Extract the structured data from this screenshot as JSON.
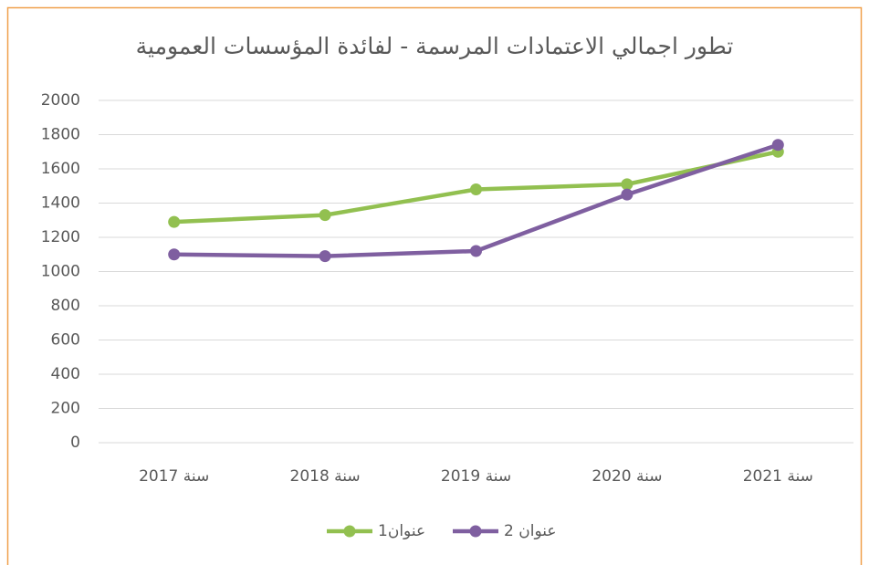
{
  "chart_data": {
    "type": "line",
    "title": "تطور اجمالي الاعتمادات المرسمة - لفائدة المؤسسات العمومية",
    "categories": [
      "سنة 2017",
      "سنة 2018",
      "سنة 2019",
      "سنة 2020",
      "سنة 2021"
    ],
    "series": [
      {
        "name": "عنوان1",
        "color": "#92c050",
        "values": [
          1290,
          1330,
          1480,
          1510,
          1700
        ]
      },
      {
        "name": "عنوان 2",
        "color": "#7f5fa0",
        "values": [
          1100,
          1090,
          1120,
          1450,
          1740
        ]
      }
    ],
    "ylim": [
      0,
      2000
    ],
    "yticks": [
      0,
      200,
      400,
      600,
      800,
      1000,
      1200,
      1400,
      1600,
      1800,
      2000
    ],
    "grid": true,
    "legend": "bottom"
  }
}
